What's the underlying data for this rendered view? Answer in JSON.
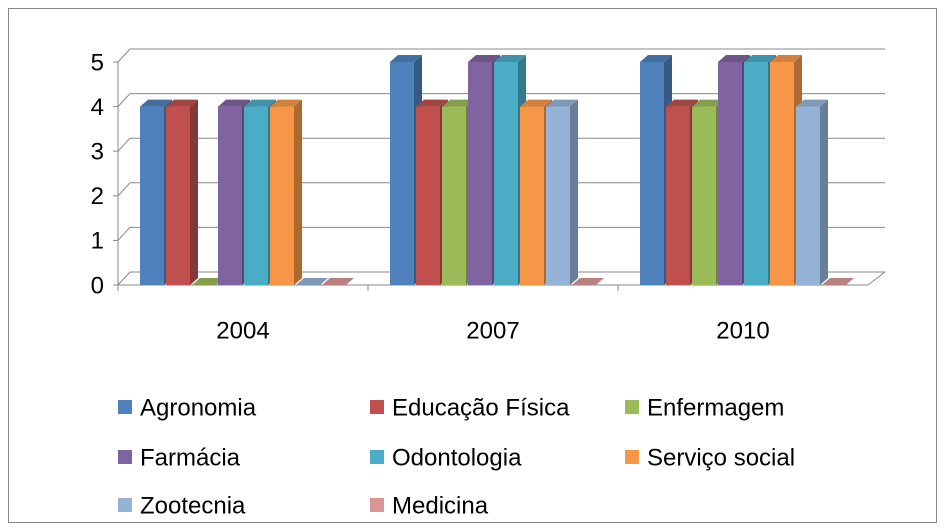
{
  "chart_data": {
    "type": "bar3d",
    "categories": [
      "2004",
      "2007",
      "2010"
    ],
    "series": [
      {
        "name": "Agronomia",
        "color": "#4F81BD",
        "values": [
          4,
          5,
          5
        ]
      },
      {
        "name": "Educação Física",
        "color": "#C0504D",
        "values": [
          4,
          4,
          4
        ]
      },
      {
        "name": "Enfermagem",
        "color": "#9BBB59",
        "values": [
          0,
          4,
          4
        ]
      },
      {
        "name": "Farmácia",
        "color": "#8064A2",
        "values": [
          4,
          5,
          5
        ]
      },
      {
        "name": "Odontologia",
        "color": "#4BACC6",
        "values": [
          4,
          5,
          5
        ]
      },
      {
        "name": "Serviço social",
        "color": "#F79646",
        "values": [
          4,
          4,
          5
        ]
      },
      {
        "name": "Zootecnia",
        "color": "#95B3D7",
        "values": [
          0,
          4,
          4
        ]
      },
      {
        "name": "Medicina",
        "color": "#D99694",
        "values": [
          0,
          0,
          0
        ]
      }
    ],
    "ylim": [
      0,
      5
    ],
    "yticks": [
      0,
      1,
      2,
      3,
      4,
      5
    ],
    "grid": true
  }
}
